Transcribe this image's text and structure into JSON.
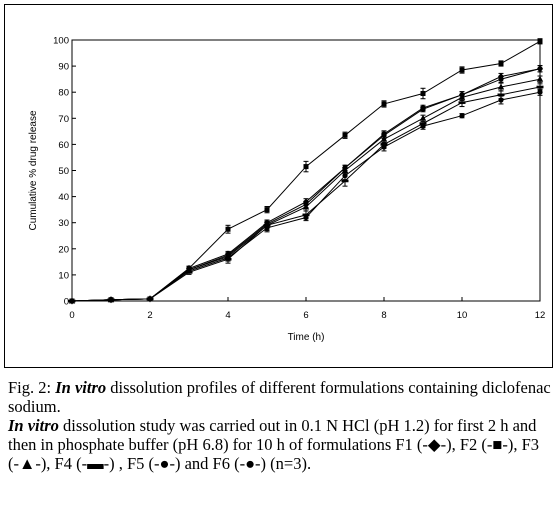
{
  "chart_data": {
    "type": "line",
    "xlabel": "Time (h)",
    "ylabel": "Cumulative % drug release",
    "x": [
      0,
      1,
      2,
      3,
      4,
      5,
      6,
      7,
      8,
      9,
      10,
      11,
      12
    ],
    "xlim": [
      0,
      12
    ],
    "ylim": [
      0,
      100
    ],
    "xticks": [
      0,
      2,
      4,
      6,
      8,
      10,
      12
    ],
    "yticks": [
      0,
      10,
      20,
      30,
      40,
      50,
      60,
      70,
      80,
      90,
      100
    ],
    "grid": false,
    "series": [
      {
        "marker": "diamond",
        "values": [
          0,
          0.5,
          0.8,
          12.5,
          18,
          30,
          38,
          51,
          64,
          74,
          79,
          86,
          89
        ],
        "err": [
          0,
          0,
          0,
          0.8,
          1.0,
          1.0,
          1.2,
          1.0,
          1.2,
          1.0,
          1.2,
          1.2,
          1.2
        ]
      },
      {
        "marker": "square",
        "values": [
          0,
          0.5,
          0.8,
          12.5,
          27.5,
          35,
          51.5,
          63.5,
          75.5,
          79.5,
          88.5,
          91,
          99.5
        ],
        "err": [
          0,
          0,
          0,
          0.8,
          1.5,
          1.2,
          2.0,
          1.2,
          1.2,
          2.0,
          1.2,
          1.0,
          1.0
        ]
      },
      {
        "marker": "triangle",
        "values": [
          0,
          0.5,
          0.8,
          12,
          17,
          29,
          36,
          50,
          62,
          70,
          78,
          82,
          85
        ],
        "err": [
          0,
          0,
          0,
          0.8,
          1.0,
          1.5,
          1.5,
          1.2,
          1.2,
          1.2,
          1.2,
          1.5,
          1.2
        ]
      },
      {
        "marker": "bar",
        "values": [
          0,
          0.5,
          0.8,
          11,
          16,
          29,
          33,
          46,
          60,
          68,
          76,
          79,
          82
        ],
        "err": [
          0,
          0,
          0,
          0.8,
          1.5,
          2.0,
          1.5,
          2.0,
          1.5,
          1.5,
          1.5,
          1.5,
          1.2
        ]
      },
      {
        "marker": "circle",
        "values": [
          0,
          0.5,
          0.8,
          11.5,
          16.5,
          28,
          32,
          48,
          59,
          67,
          71,
          77,
          80
        ],
        "err": [
          0,
          0,
          0,
          0.8,
          1.2,
          1.5,
          1.2,
          1.5,
          1.5,
          1.2,
          0.8,
          1.5,
          1.2
        ]
      },
      {
        "marker": "circle",
        "values": [
          0,
          0.5,
          0.8,
          12,
          17.5,
          29.5,
          37,
          51,
          63.5,
          73.5,
          79,
          85,
          89
        ],
        "err": [
          0,
          0,
          0,
          0.8,
          1.0,
          1.0,
          1.2,
          1.0,
          1.2,
          1.0,
          1.2,
          1.2,
          1.2
        ]
      }
    ]
  },
  "caption": {
    "fig_label": "Fig. 2: ",
    "fig_italic": "In vitro",
    "fig_rest": " dissolution profiles of different formulations containing diclofenac sodium.",
    "body_italic": "In vitro",
    "body_rest": " dissolution study was carried out in 0.1 N HCl (pH 1.2) for first 2 h and then in phosphate buffer (pH 6.8) for 10 h of formulations F1 (-◆-), F2 (-■-), F3 (-▲-), F4 (-▬-) , F5 (-●-) and F6 (-●-) (n=3)."
  }
}
